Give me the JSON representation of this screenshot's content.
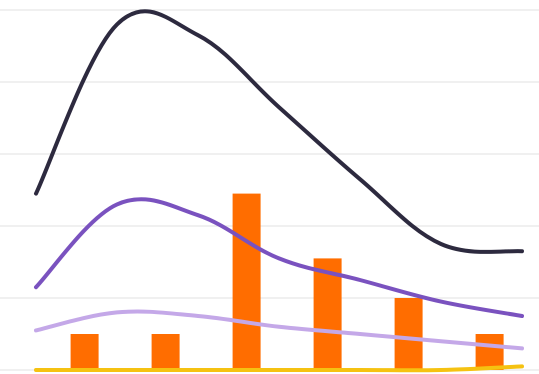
{
  "chart_data": {
    "type": "line",
    "x": [
      0,
      1,
      2,
      3,
      4,
      5,
      6
    ],
    "ylim": [
      0,
      5
    ],
    "grid": true,
    "legend": "none",
    "bar_series": {
      "color": "#ff6d00",
      "points": [
        {
          "x": 0.6,
          "y": 0.5
        },
        {
          "x": 1.6,
          "y": 0.5
        },
        {
          "x": 2.6,
          "y": 2.45
        },
        {
          "x": 3.6,
          "y": 1.55
        },
        {
          "x": 4.6,
          "y": 1.0
        },
        {
          "x": 5.6,
          "y": 0.5
        }
      ]
    },
    "series": [
      {
        "color": "#2d2a3f",
        "values": [
          2.45,
          4.8,
          4.65,
          3.65,
          2.65,
          1.75,
          1.65
        ]
      },
      {
        "color": "#7a52bf",
        "values": [
          1.15,
          2.3,
          2.15,
          1.55,
          1.25,
          0.95,
          0.75
        ]
      },
      {
        "color": "#c4a8e8",
        "values": [
          0.55,
          0.8,
          0.75,
          0.6,
          0.5,
          0.4,
          0.3
        ]
      },
      {
        "color": "#f5c211",
        "values": [
          0.0,
          0.0,
          0.0,
          0.0,
          0.0,
          0.0,
          0.05
        ]
      }
    ]
  }
}
